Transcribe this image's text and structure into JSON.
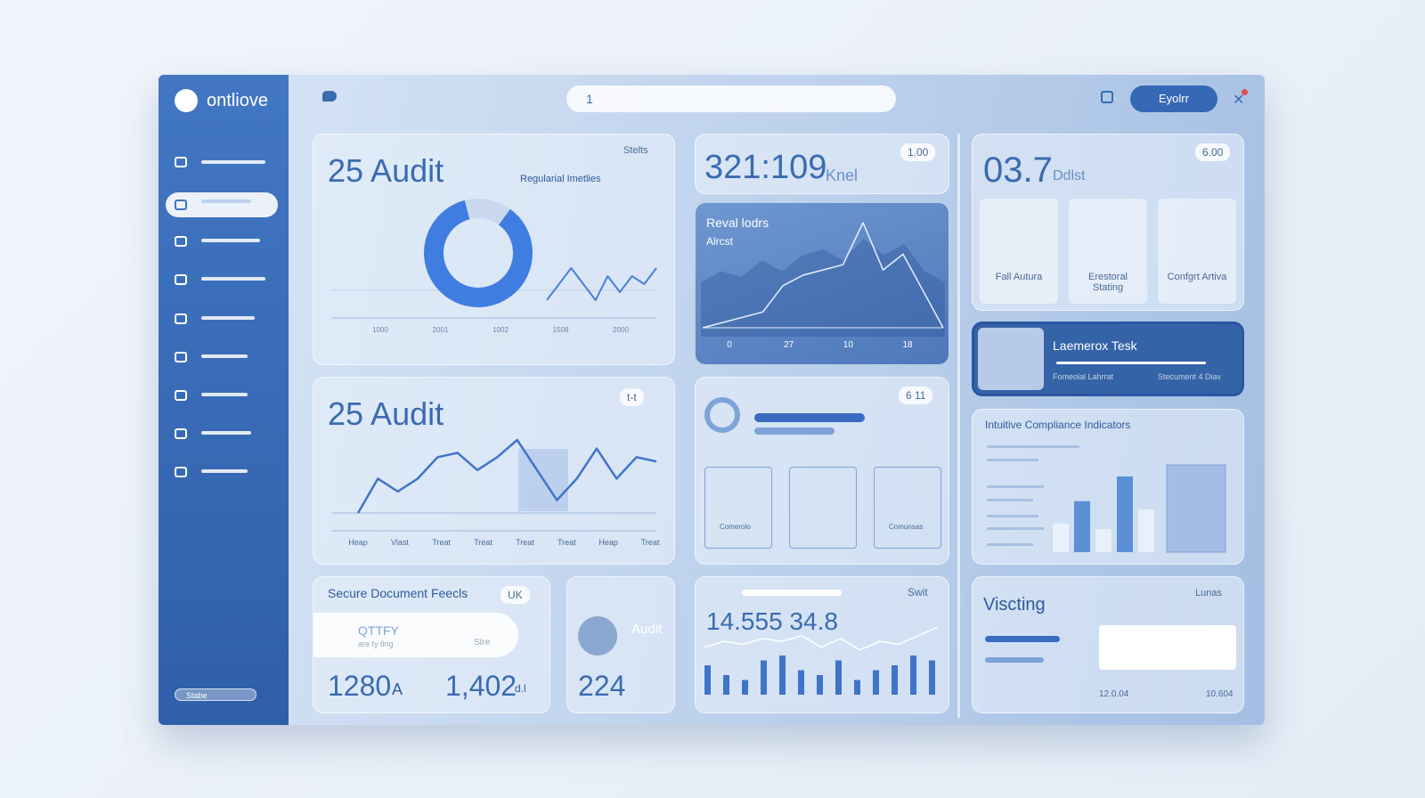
{
  "brand": "ontliove",
  "sidebar_footer": "Stabe",
  "search": "1",
  "header_button": "Eyolrr",
  "cards": {
    "audit_donut": {
      "title": "25 Audit",
      "badge": "Stelts",
      "legend": "Regularial Imetlies",
      "x_labels": [
        "1000",
        "2001",
        "1002",
        "1508",
        "2000"
      ],
      "donut": [
        86,
        14
      ],
      "line": [
        1,
        3,
        5,
        3,
        1,
        4,
        2,
        4,
        3,
        5
      ]
    },
    "metric": {
      "value": "321:109",
      "unit": "Knel",
      "badge": "1.00"
    },
    "revenue": {
      "title": "Reval lodrs",
      "subtitle": "Alrcst",
      "x_labels": [
        "0",
        "27",
        "10",
        "18"
      ],
      "area": [
        5,
        6,
        5.5,
        7,
        6,
        7.5,
        8,
        7,
        9,
        7.5,
        8.5,
        6,
        5
      ],
      "line": [
        0,
        0.5,
        1,
        1.5,
        4,
        5,
        5.5,
        6,
        10,
        5.5,
        7,
        3.5,
        0
      ]
    },
    "overview": {
      "value": "03.7",
      "unit": "Ddlst",
      "badge": "6.00",
      "tiles": [
        "Fall Autura",
        "Erestoral Stating",
        "Confgrt Artiva"
      ]
    },
    "task": {
      "title": "Laemerox Tesk",
      "left": "Fomeolal Lahrrat",
      "right": "Stecument 4 Diav"
    },
    "audit_trend": {
      "title": "25 Audit",
      "badge": "t-t",
      "x_labels": [
        "Heap",
        "Vlast",
        "Treat",
        "Treat",
        "Treat",
        "Treat",
        "Heap",
        "Treat"
      ],
      "values": [
        0,
        4,
        2.5,
        4,
        6.5,
        7,
        5,
        6.5,
        8.5,
        5,
        1.5,
        4,
        7.5,
        4,
        6.5,
        6
      ]
    },
    "progress": {
      "badge": "6 11",
      "tiles": [
        "Comerolo",
        "Comunsas"
      ]
    },
    "compliance": {
      "title": "Intuitive Compliance Indicators",
      "bars": [
        3.5,
        6.2,
        2.8,
        9.2,
        5.2
      ]
    },
    "documents": {
      "title": "Secure Document Feecls",
      "badge": "UK",
      "item": "QTTFY",
      "item_sub": "are ty ting",
      "item_status": "Stre",
      "stat1": "1280",
      "stat1_unit": "A",
      "stat2": "1,402",
      "stat2_unit": "d.l"
    },
    "audit_user": {
      "title": "Audit",
      "value": "224"
    },
    "switch": {
      "badge": "Swit",
      "value": "14.555 34.8",
      "bars": [
        6,
        4,
        3,
        7,
        8,
        5,
        4,
        7,
        3,
        5,
        6,
        8,
        7
      ],
      "line": [
        3,
        4,
        3.5,
        4.5,
        4,
        5,
        3,
        4.5,
        2.5,
        4,
        3.5,
        5,
        6.5
      ]
    },
    "visiting": {
      "title": "Viscting",
      "badge": "Lunas",
      "left": "12.0.04",
      "right": "10.604"
    }
  }
}
